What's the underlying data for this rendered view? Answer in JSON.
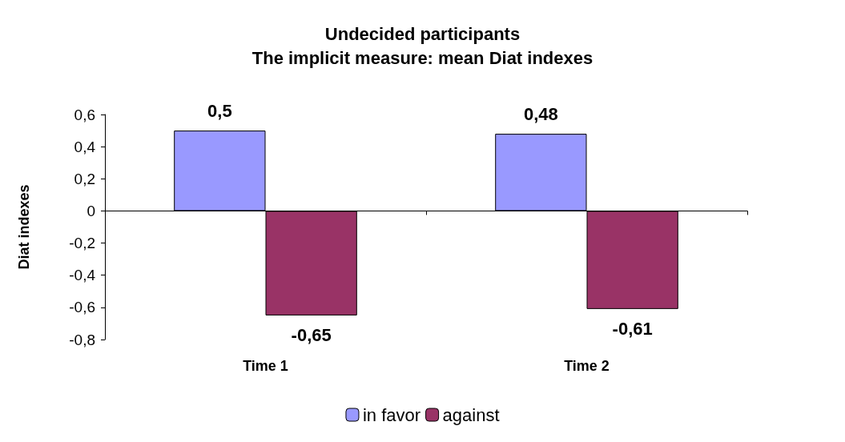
{
  "chart_data": {
    "type": "bar",
    "title": "Undecided participants\nThe implicit measure: mean Diat indexes",
    "ylabel": "Diat indexes",
    "categories": [
      "Time 1",
      "Time 2"
    ],
    "series": [
      {
        "name": "in favor",
        "color": "#9999ff",
        "values": [
          0.5,
          0.48
        ],
        "value_labels": [
          "0,5",
          "0,48"
        ]
      },
      {
        "name": "against",
        "color": "#993366",
        "values": [
          -0.65,
          -0.61
        ],
        "value_labels": [
          "-0,65",
          "-0,61"
        ]
      }
    ],
    "ylim": [
      -0.8,
      0.6
    ],
    "yticks": [
      {
        "value": -0.8,
        "label": "-0,8"
      },
      {
        "value": -0.6,
        "label": "-0,6"
      },
      {
        "value": -0.4,
        "label": "-0,4"
      },
      {
        "value": -0.2,
        "label": "-0,2"
      },
      0,
      {
        "value": 0.2,
        "label": "0,2"
      },
      {
        "value": 0.4,
        "label": "0,4"
      },
      {
        "value": 0.6,
        "label": "0,6"
      }
    ],
    "legend": "bottom"
  }
}
